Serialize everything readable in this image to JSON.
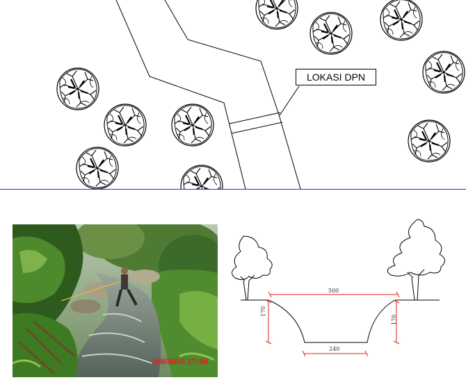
{
  "plan": {
    "location_label": "LOKASI DPN"
  },
  "photo": {
    "timestamp": "6/6/2015   17:38"
  },
  "section": {
    "top_width": "500",
    "bottom_width": "240",
    "left_height": "170",
    "right_height": "170"
  },
  "colors": {
    "divider": "#1a3bbf",
    "dimension": "#e02020",
    "stamp": "#ff2a2a"
  }
}
